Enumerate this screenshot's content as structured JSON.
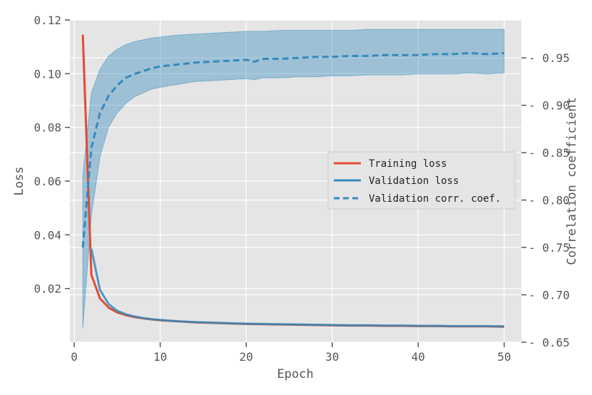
{
  "chart_data": {
    "type": "line",
    "title": "",
    "xlabel": "Epoch",
    "ylabel": "Loss",
    "y2label": "Correlation coefficient",
    "xlim": [
      -0.5,
      52
    ],
    "ylim": [
      0.0,
      0.12
    ],
    "y2lim": [
      0.65,
      0.99
    ],
    "xticks": [
      0,
      10,
      20,
      30,
      40,
      50
    ],
    "yticks": [
      0.02,
      0.04,
      0.06,
      0.08,
      0.1,
      0.12
    ],
    "y2ticks": [
      0.65,
      0.7,
      0.75,
      0.8,
      0.85,
      0.9,
      0.95
    ],
    "xtick_labels": [
      "0",
      "10",
      "20",
      "30",
      "40",
      "50"
    ],
    "ytick_labels": [
      "0.02",
      "0.04",
      "0.06",
      "0.08",
      "0.10",
      "0.12"
    ],
    "y2tick_labels": [
      "0.65",
      "0.70",
      "0.75",
      "0.80",
      "0.85",
      "0.90",
      "0.95"
    ],
    "grid": true,
    "legend_position": "center-right",
    "series": [
      {
        "name": "Training loss",
        "axis": "left",
        "style": "solid",
        "color": "#E24A33",
        "x": [
          1,
          2,
          3,
          4,
          5,
          6,
          7,
          8,
          9,
          10,
          12,
          14,
          16,
          18,
          20,
          22,
          24,
          26,
          28,
          30,
          32,
          34,
          36,
          38,
          40,
          42,
          44,
          46,
          48,
          50
        ],
        "values": [
          0.1145,
          0.0251,
          0.0163,
          0.0129,
          0.0111,
          0.0101,
          0.0094,
          0.0089,
          0.0085,
          0.0082,
          0.0078,
          0.0074,
          0.0072,
          0.007,
          0.0068,
          0.0067,
          0.0066,
          0.0065,
          0.0064,
          0.0063,
          0.0062,
          0.0062,
          0.0061,
          0.0061,
          0.006,
          0.006,
          0.0059,
          0.0059,
          0.0059,
          0.0058
        ]
      },
      {
        "name": "Validation loss",
        "axis": "left",
        "style": "solid",
        "color": "#348ABD",
        "x": [
          2,
          3,
          4,
          5,
          6,
          7,
          8,
          9,
          10,
          12,
          14,
          16,
          18,
          20,
          22,
          24,
          26,
          28,
          30,
          32,
          34,
          36,
          38,
          40,
          42,
          44,
          46,
          48,
          50
        ],
        "values": [
          0.0348,
          0.0195,
          0.0142,
          0.0117,
          0.0104,
          0.0096,
          0.009,
          0.0086,
          0.0083,
          0.0078,
          0.0075,
          0.0073,
          0.0071,
          0.0069,
          0.0068,
          0.0067,
          0.0066,
          0.0065,
          0.0064,
          0.0063,
          0.0063,
          0.0062,
          0.0062,
          0.0061,
          0.0061,
          0.006,
          0.006,
          0.006,
          0.0059
        ]
      },
      {
        "name": "Validation corr. coef.",
        "axis": "right",
        "style": "dashed",
        "color": "#348ABD",
        "x": [
          1,
          2,
          3,
          4,
          5,
          6,
          7,
          8,
          9,
          10,
          12,
          14,
          16,
          18,
          20,
          21,
          22,
          24,
          26,
          28,
          30,
          32,
          34,
          36,
          38,
          40,
          42,
          44,
          46,
          48,
          50
        ],
        "values": [
          0.75,
          0.855,
          0.892,
          0.91,
          0.921,
          0.929,
          0.933,
          0.936,
          0.939,
          0.941,
          0.943,
          0.945,
          0.946,
          0.947,
          0.948,
          0.946,
          0.949,
          0.949,
          0.95,
          0.951,
          0.951,
          0.952,
          0.952,
          0.953,
          0.953,
          0.953,
          0.954,
          0.954,
          0.955,
          0.954,
          0.955
        ]
      }
    ],
    "band": {
      "axis": "right",
      "color": "#348ABD",
      "opacity": 0.4,
      "x": [
        1,
        2,
        3,
        4,
        5,
        6,
        7,
        8,
        9,
        10,
        12,
        14,
        16,
        18,
        20,
        21,
        22,
        24,
        26,
        28,
        30,
        32,
        34,
        36,
        38,
        40,
        42,
        44,
        46,
        48,
        50
      ],
      "upper": [
        0.825,
        0.913,
        0.938,
        0.952,
        0.959,
        0.964,
        0.967,
        0.969,
        0.971,
        0.972,
        0.974,
        0.975,
        0.976,
        0.977,
        0.978,
        0.978,
        0.978,
        0.979,
        0.979,
        0.979,
        0.979,
        0.979,
        0.98,
        0.98,
        0.98,
        0.98,
        0.98,
        0.98,
        0.98,
        0.98,
        0.98
      ],
      "lower": [
        0.665,
        0.784,
        0.846,
        0.877,
        0.892,
        0.902,
        0.909,
        0.913,
        0.917,
        0.919,
        0.922,
        0.925,
        0.926,
        0.927,
        0.928,
        0.927,
        0.929,
        0.929,
        0.93,
        0.93,
        0.931,
        0.931,
        0.932,
        0.932,
        0.932,
        0.933,
        0.933,
        0.933,
        0.934,
        0.933,
        0.934
      ]
    }
  }
}
